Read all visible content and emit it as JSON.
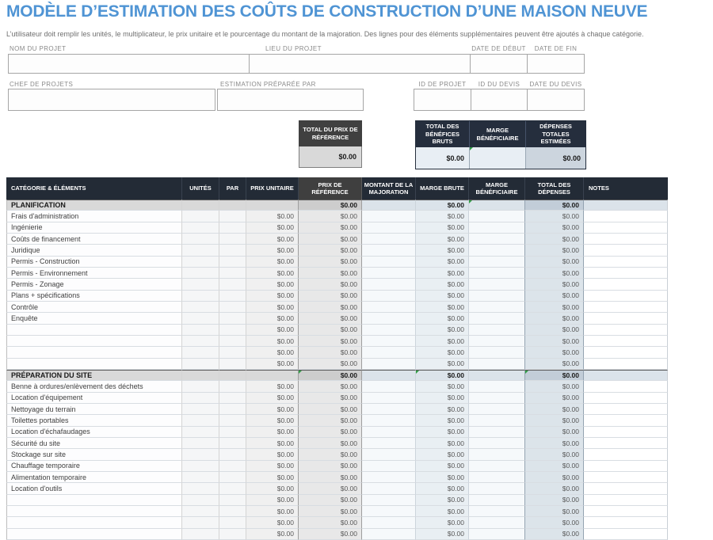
{
  "title": "MODÈLE D’ESTIMATION DES COÛTS DE CONSTRUCTION D’UNE MAISON NEUVE",
  "subtitle": "L’utilisateur doit remplir les unités, le multiplicateur, le prix unitaire et le pourcentage du montant de la majoration.  Des lignes pour des éléments supplémentaires peuvent être ajoutés à chaque catégorie.",
  "accent_color": "#4f94d4",
  "form": {
    "fields": [
      {
        "label": "NOM DU PROJET",
        "value": ""
      },
      {
        "label": "LIEU DU PROJET",
        "value": ""
      },
      {
        "label": "DATE DE DÉBUT",
        "value": ""
      },
      {
        "label": "DATE DE FIN",
        "value": ""
      },
      {
        "label": "CHEF DE PROJETS",
        "value": ""
      },
      {
        "label": "ESTIMATION PRÉPARÉE PAR",
        "value": ""
      },
      {
        "label": "ID DE PROJET",
        "value": ""
      },
      {
        "label": "ID DU DEVIS",
        "value": ""
      },
      {
        "label": "DATE DU DEVIS",
        "value": ""
      }
    ]
  },
  "summary": {
    "reference_total": {
      "header": "TOTAL DU PRIX DE RÉFÉRENCE",
      "value": "$0.00"
    },
    "gross_profit": {
      "header": "TOTAL DES BÉNÉFICES BRUTS",
      "value": "$0.00"
    },
    "profit_margin": {
      "header": "MARGE BÉNÉFICIAIRE",
      "value": ""
    },
    "total_expenses": {
      "header": "DÉPENSES TOTALES ESTIMÉES",
      "value": "$0.00"
    }
  },
  "table": {
    "columns": [
      {
        "label": "CATÉGORIE & ÉLÉMENTS"
      },
      {
        "label": "UNITÉS"
      },
      {
        "label": "PAR"
      },
      {
        "label": "PRIX UNITAIRE"
      },
      {
        "label": "PRIX DE RÉFÉRENCE"
      },
      {
        "label": "MONTANT DE LA MAJORATION"
      },
      {
        "label": "MARGE BRUTE"
      },
      {
        "label": "MARGE BÉNÉFICIAIRE"
      },
      {
        "label": "TOTAL DES DÉPENSES"
      },
      {
        "label": "NOTES"
      }
    ],
    "rows": [
      {
        "type": "section",
        "label": "PLANIFICATION",
        "prix_reference": "$0.00",
        "marge_brute": "$0.00",
        "total_depenses": "$0.00",
        "markers": [
          "marge_beneficiaire"
        ]
      },
      {
        "type": "item",
        "label": "Frais d'administration",
        "prix_unitaire": "$0.00",
        "prix_reference": "$0.00",
        "marge_brute": "$0.00",
        "total_depenses": "$0.00"
      },
      {
        "type": "item",
        "label": "Ingénierie",
        "prix_unitaire": "$0.00",
        "prix_reference": "$0.00",
        "marge_brute": "$0.00",
        "total_depenses": "$0.00"
      },
      {
        "type": "item",
        "label": "Coûts de financement",
        "prix_unitaire": "$0.00",
        "prix_reference": "$0.00",
        "marge_brute": "$0.00",
        "total_depenses": "$0.00"
      },
      {
        "type": "item",
        "label": "Juridique",
        "prix_unitaire": "$0.00",
        "prix_reference": "$0.00",
        "marge_brute": "$0.00",
        "total_depenses": "$0.00"
      },
      {
        "type": "item",
        "label": "Permis - Construction",
        "prix_unitaire": "$0.00",
        "prix_reference": "$0.00",
        "marge_brute": "$0.00",
        "total_depenses": "$0.00"
      },
      {
        "type": "item",
        "label": "Permis - Environnement",
        "prix_unitaire": "$0.00",
        "prix_reference": "$0.00",
        "marge_brute": "$0.00",
        "total_depenses": "$0.00"
      },
      {
        "type": "item",
        "label": "Permis - Zonage",
        "prix_unitaire": "$0.00",
        "prix_reference": "$0.00",
        "marge_brute": "$0.00",
        "total_depenses": "$0.00"
      },
      {
        "type": "item",
        "label": "Plans + spécifications",
        "prix_unitaire": "$0.00",
        "prix_reference": "$0.00",
        "marge_brute": "$0.00",
        "total_depenses": "$0.00"
      },
      {
        "type": "item",
        "label": "Contrôle",
        "prix_unitaire": "$0.00",
        "prix_reference": "$0.00",
        "marge_brute": "$0.00",
        "total_depenses": "$0.00"
      },
      {
        "type": "item",
        "label": "Enquête",
        "prix_unitaire": "$0.00",
        "prix_reference": "$0.00",
        "marge_brute": "$0.00",
        "total_depenses": "$0.00"
      },
      {
        "type": "item",
        "label": "",
        "prix_unitaire": "$0.00",
        "prix_reference": "$0.00",
        "marge_brute": "$0.00",
        "total_depenses": "$0.00"
      },
      {
        "type": "item",
        "label": "",
        "prix_unitaire": "$0.00",
        "prix_reference": "$0.00",
        "marge_brute": "$0.00",
        "total_depenses": "$0.00"
      },
      {
        "type": "item",
        "label": "",
        "prix_unitaire": "$0.00",
        "prix_reference": "$0.00",
        "marge_brute": "$0.00",
        "total_depenses": "$0.00"
      },
      {
        "type": "item",
        "label": "",
        "prix_unitaire": "$0.00",
        "prix_reference": "$0.00",
        "marge_brute": "$0.00",
        "total_depenses": "$0.00"
      },
      {
        "type": "section",
        "label": "PRÉPARATION DU SITE",
        "prix_reference": "$0.00",
        "marge_brute": "$0.00",
        "total_depenses": "$0.00",
        "markers": [
          "prix_reference",
          "marge_brute",
          "total_depenses"
        ]
      },
      {
        "type": "item",
        "label": "Benne à ordures/enlèvement des déchets",
        "prix_unitaire": "$0.00",
        "prix_reference": "$0.00",
        "marge_brute": "$0.00",
        "total_depenses": "$0.00"
      },
      {
        "type": "item",
        "label": "Location d'équipement",
        "prix_unitaire": "$0.00",
        "prix_reference": "$0.00",
        "marge_brute": "$0.00",
        "total_depenses": "$0.00"
      },
      {
        "type": "item",
        "label": "Nettoyage du terrain",
        "prix_unitaire": "$0.00",
        "prix_reference": "$0.00",
        "marge_brute": "$0.00",
        "total_depenses": "$0.00"
      },
      {
        "type": "item",
        "label": "Toilettes portables",
        "prix_unitaire": "$0.00",
        "prix_reference": "$0.00",
        "marge_brute": "$0.00",
        "total_depenses": "$0.00"
      },
      {
        "type": "item",
        "label": "Location d'échafaudages",
        "prix_unitaire": "$0.00",
        "prix_reference": "$0.00",
        "marge_brute": "$0.00",
        "total_depenses": "$0.00"
      },
      {
        "type": "item",
        "label": "Sécurité du site",
        "prix_unitaire": "$0.00",
        "prix_reference": "$0.00",
        "marge_brute": "$0.00",
        "total_depenses": "$0.00"
      },
      {
        "type": "item",
        "label": "Stockage sur site",
        "prix_unitaire": "$0.00",
        "prix_reference": "$0.00",
        "marge_brute": "$0.00",
        "total_depenses": "$0.00"
      },
      {
        "type": "item",
        "label": "Chauffage temporaire",
        "prix_unitaire": "$0.00",
        "prix_reference": "$0.00",
        "marge_brute": "$0.00",
        "total_depenses": "$0.00"
      },
      {
        "type": "item",
        "label": "Alimentation temporaire",
        "prix_unitaire": "$0.00",
        "prix_reference": "$0.00",
        "marge_brute": "$0.00",
        "total_depenses": "$0.00"
      },
      {
        "type": "item",
        "label": "Location d'outils",
        "prix_unitaire": "$0.00",
        "prix_reference": "$0.00",
        "marge_brute": "$0.00",
        "total_depenses": "$0.00"
      },
      {
        "type": "item",
        "label": "",
        "prix_unitaire": "$0.00",
        "prix_reference": "$0.00",
        "marge_brute": "$0.00",
        "total_depenses": "$0.00"
      },
      {
        "type": "item",
        "label": "",
        "prix_unitaire": "$0.00",
        "prix_reference": "$0.00",
        "marge_brute": "$0.00",
        "total_depenses": "$0.00"
      },
      {
        "type": "item",
        "label": "",
        "prix_unitaire": "$0.00",
        "prix_reference": "$0.00",
        "marge_brute": "$0.00",
        "total_depenses": "$0.00"
      },
      {
        "type": "item",
        "label": "",
        "prix_unitaire": "$0.00",
        "prix_reference": "$0.00",
        "marge_brute": "$0.00",
        "total_depenses": "$0.00"
      }
    ]
  }
}
